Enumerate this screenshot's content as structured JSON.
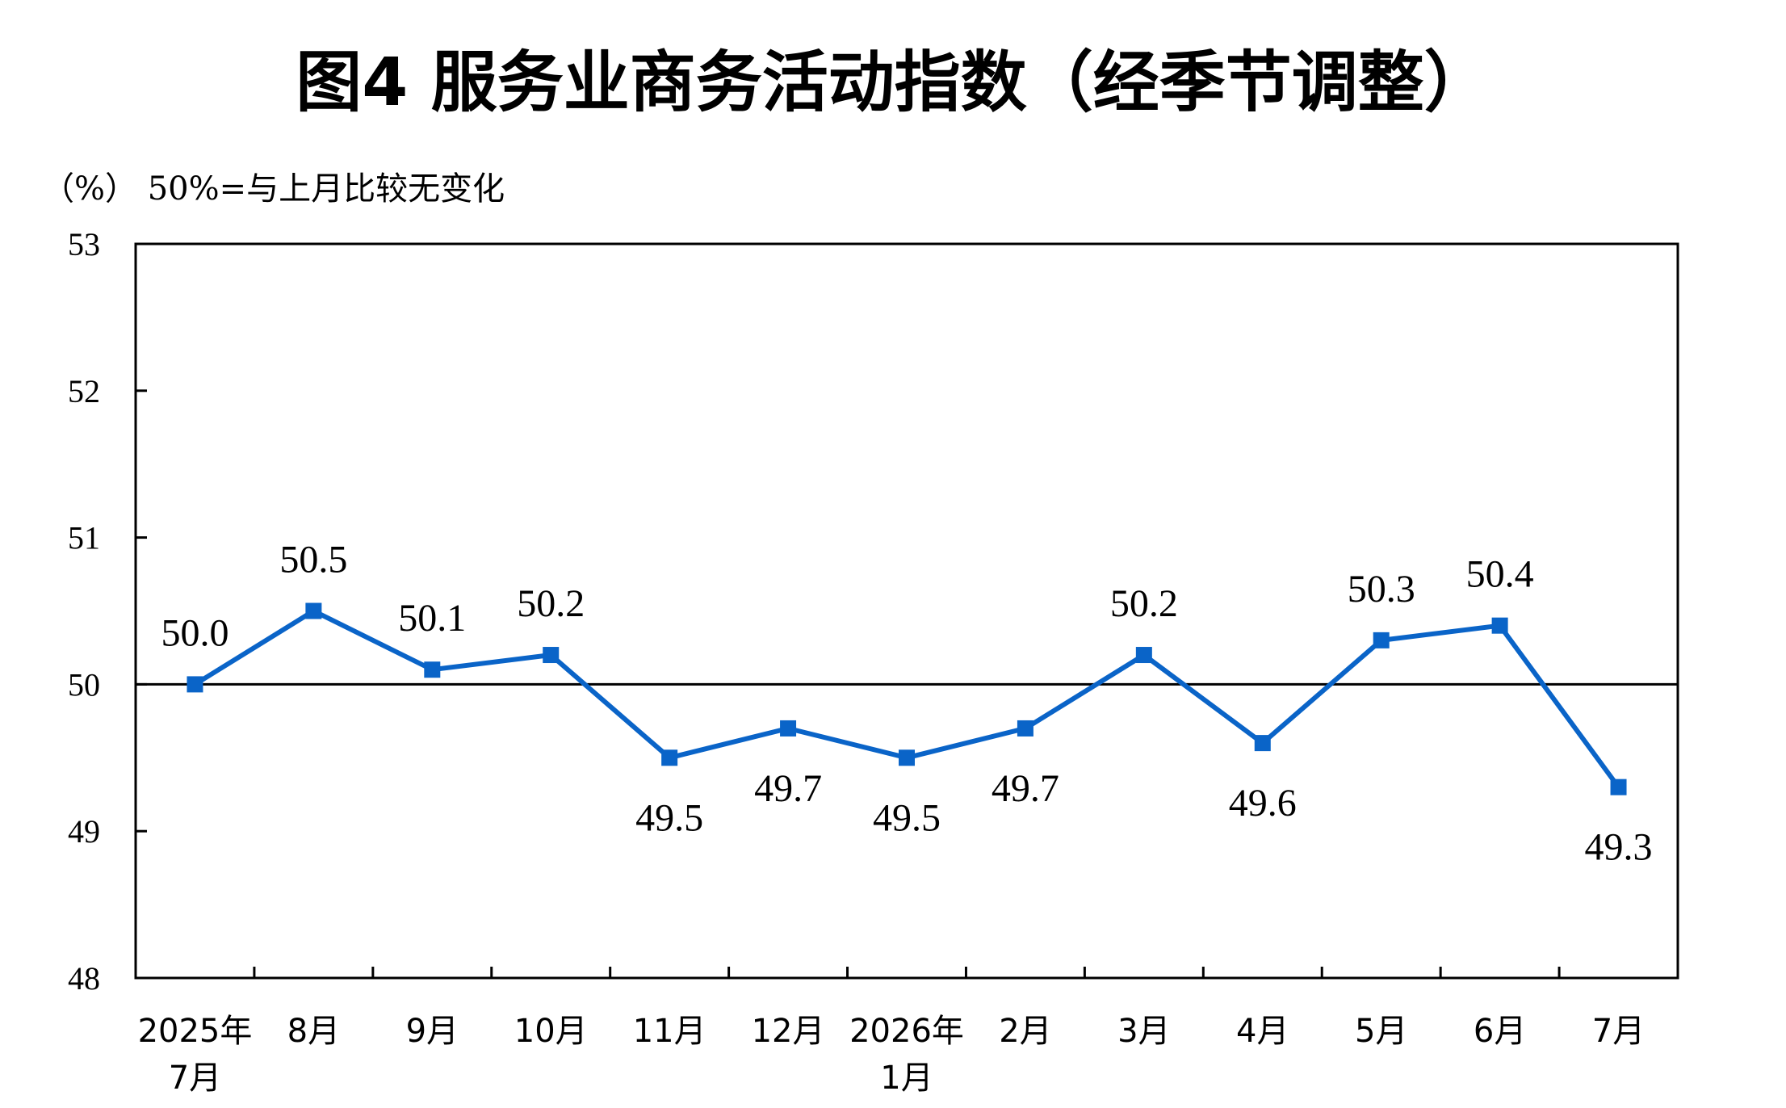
{
  "chart_data": {
    "type": "line",
    "title": "图4  服务业商务活动指数（经季节调整）",
    "unit_label": "（%）  50%=与上月比较无变化",
    "categories": [
      [
        "2025年",
        "7月"
      ],
      [
        "8月"
      ],
      [
        "9月"
      ],
      [
        "10月"
      ],
      [
        "11月"
      ],
      [
        "12月"
      ],
      [
        "2026年",
        "1月"
      ],
      [
        "2月"
      ],
      [
        "3月"
      ],
      [
        "4月"
      ],
      [
        "5月"
      ],
      [
        "6月"
      ],
      [
        "7月"
      ]
    ],
    "series": [
      {
        "values": [
          50.0,
          50.5,
          50.1,
          50.2,
          49.5,
          49.7,
          49.5,
          49.7,
          50.2,
          49.6,
          50.3,
          50.4,
          49.3
        ],
        "data_labels": [
          "50.0",
          "50.5",
          "50.1",
          "50.2",
          "49.5",
          "49.7",
          "49.5",
          "49.7",
          "50.2",
          "49.6",
          "50.3",
          "50.4",
          "49.3"
        ],
        "color": "#0a64c8",
        "marker": "square"
      }
    ],
    "ylim": [
      48,
      53
    ],
    "yticks": [
      48,
      49,
      50,
      51,
      52,
      53
    ],
    "reference_line": 50,
    "grid": false,
    "xlabel": "",
    "ylabel": ""
  }
}
